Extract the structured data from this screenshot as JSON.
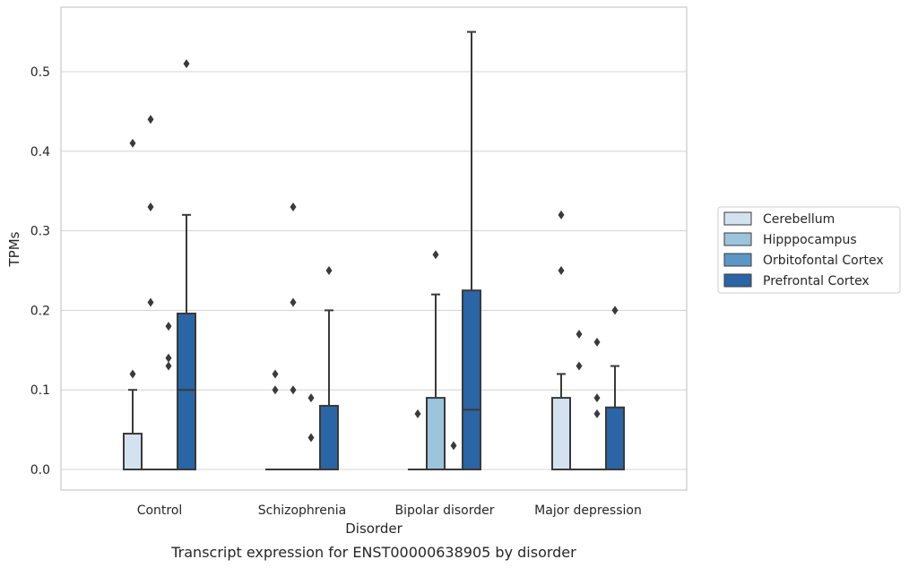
{
  "chart_data": {
    "type": "box",
    "caption": "Transcript expression for ENST00000638905 by disorder",
    "xlabel": "Disorder",
    "ylabel": "TPMs",
    "ylim": [
      -0.027,
      0.582
    ],
    "yticks": [
      0.0,
      0.1,
      0.2,
      0.3,
      0.4,
      0.5
    ],
    "ytick_labels": [
      "0.0",
      "0.1",
      "0.2",
      "0.3",
      "0.4",
      "0.5"
    ],
    "grid": "horizontal",
    "legend_position": "right",
    "categories": [
      "Control",
      "Schizophrenia",
      "Bipolar disorder",
      "Major depression"
    ],
    "series": [
      {
        "name": "Cerebellum",
        "color": "#d4e2f0",
        "boxes": [
          {
            "q1": 0.0,
            "median": 0.0,
            "q3": 0.045,
            "whisker_low": 0.0,
            "whisker_high": 0.1,
            "outliers": [
              0.12,
              0.41
            ]
          },
          {
            "q1": 0.0,
            "median": 0.0,
            "q3": 0.0,
            "whisker_low": 0.0,
            "whisker_high": 0.0,
            "outliers": [
              0.1,
              0.12
            ]
          },
          {
            "q1": 0.0,
            "median": 0.0,
            "q3": 0.0,
            "whisker_low": 0.0,
            "whisker_high": 0.0,
            "outliers": [
              0.07
            ]
          },
          {
            "q1": 0.0,
            "median": 0.0,
            "q3": 0.09,
            "whisker_low": 0.0,
            "whisker_high": 0.12,
            "outliers": [
              0.25,
              0.32
            ]
          }
        ]
      },
      {
        "name": "Hipppocampus",
        "color": "#9cc4dd",
        "boxes": [
          {
            "q1": 0.0,
            "median": 0.0,
            "q3": 0.0,
            "whisker_low": 0.0,
            "whisker_high": 0.0,
            "outliers": [
              0.21,
              0.33,
              0.44
            ]
          },
          {
            "q1": 0.0,
            "median": 0.0,
            "q3": 0.0,
            "whisker_low": 0.0,
            "whisker_high": 0.0,
            "outliers": [
              0.1,
              0.21,
              0.33
            ]
          },
          {
            "q1": 0.0,
            "median": 0.0,
            "q3": 0.09,
            "whisker_low": 0.0,
            "whisker_high": 0.22,
            "outliers": [
              0.27
            ]
          },
          {
            "q1": 0.0,
            "median": 0.0,
            "q3": 0.0,
            "whisker_low": 0.0,
            "whisker_high": 0.0,
            "outliers": [
              0.13,
              0.17
            ]
          }
        ]
      },
      {
        "name": "Orbitofontal Cortex",
        "color": "#5a96c6",
        "boxes": [
          {
            "q1": 0.0,
            "median": 0.0,
            "q3": 0.0,
            "whisker_low": 0.0,
            "whisker_high": 0.0,
            "outliers": [
              0.13,
              0.14,
              0.18
            ]
          },
          {
            "q1": 0.0,
            "median": 0.0,
            "q3": 0.0,
            "whisker_low": 0.0,
            "whisker_high": 0.0,
            "outliers": [
              0.04,
              0.09
            ]
          },
          {
            "q1": 0.0,
            "median": 0.0,
            "q3": 0.0,
            "whisker_low": 0.0,
            "whisker_high": 0.0,
            "outliers": [
              0.03
            ]
          },
          {
            "q1": 0.0,
            "median": 0.0,
            "q3": 0.0,
            "whisker_low": 0.0,
            "whisker_high": 0.0,
            "outliers": [
              0.07,
              0.09,
              0.16
            ]
          }
        ]
      },
      {
        "name": "Prefrontal Cortex",
        "color": "#2a65a5",
        "boxes": [
          {
            "q1": 0.0,
            "median": 0.1,
            "q3": 0.196,
            "whisker_low": 0.0,
            "whisker_high": 0.32,
            "outliers": [
              0.51
            ]
          },
          {
            "q1": 0.0,
            "median": 0.0,
            "q3": 0.08,
            "whisker_low": 0.0,
            "whisker_high": 0.2,
            "outliers": [
              0.25
            ]
          },
          {
            "q1": 0.0,
            "median": 0.075,
            "q3": 0.225,
            "whisker_low": 0.0,
            "whisker_high": 0.55,
            "outliers": []
          },
          {
            "q1": 0.0,
            "median": 0.0,
            "q3": 0.078,
            "whisker_low": 0.0,
            "whisker_high": 0.13,
            "outliers": [
              0.2
            ]
          }
        ]
      }
    ]
  }
}
